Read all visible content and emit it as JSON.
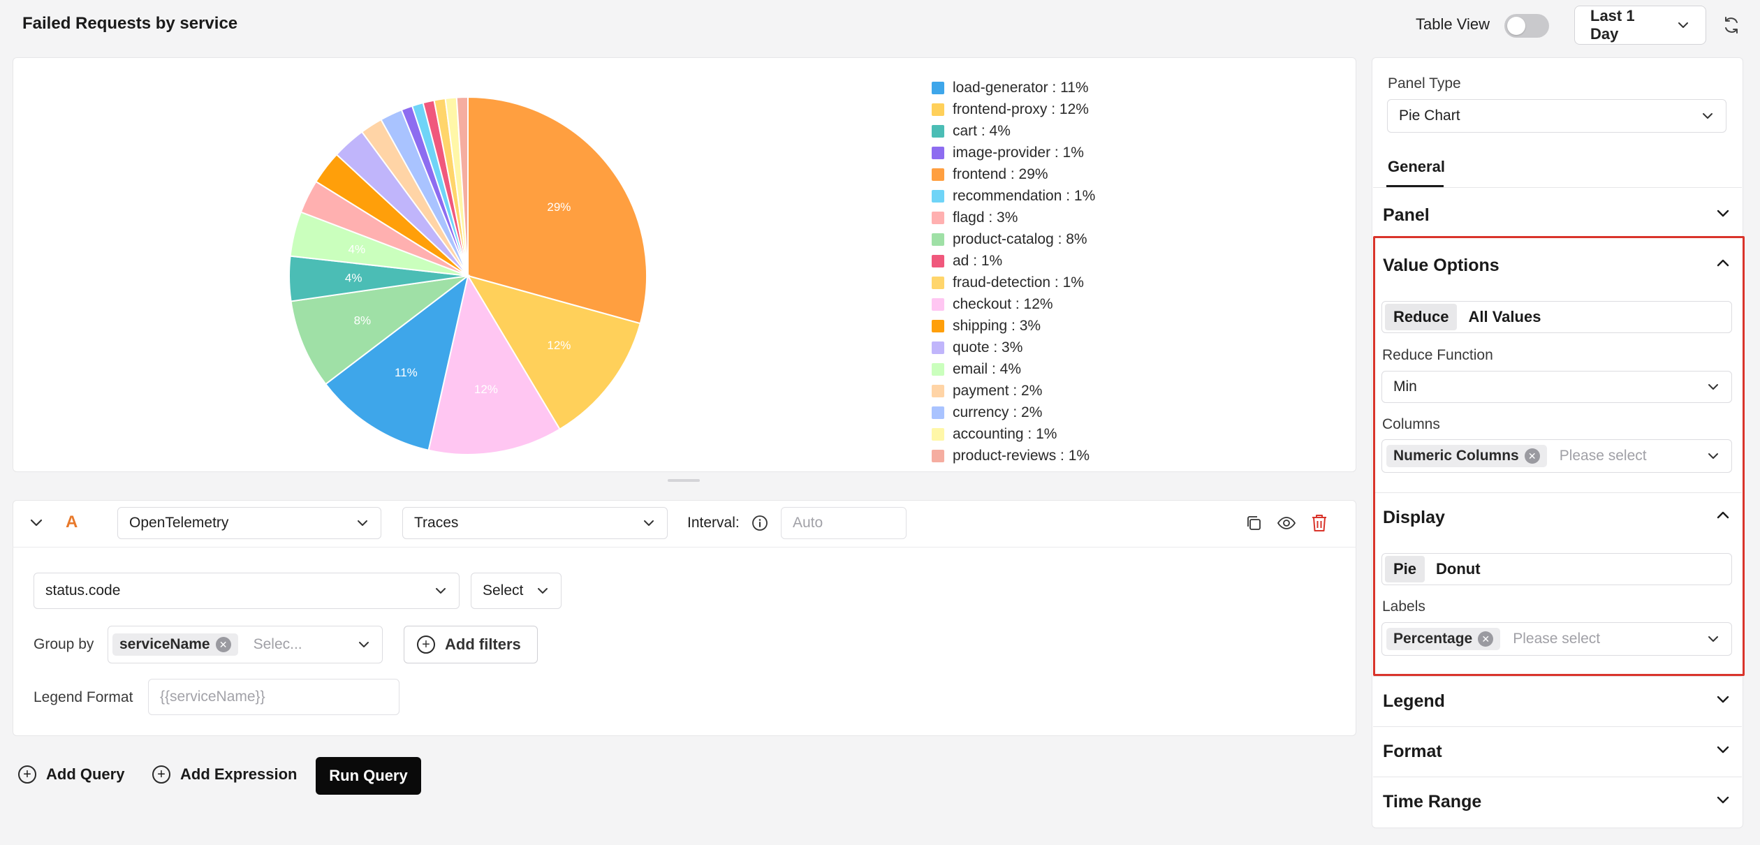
{
  "header": {
    "title": "Failed Requests by service",
    "table_view_label": "Table View",
    "time_range": "Last 1 Day"
  },
  "chart_data": {
    "type": "pie",
    "title": "",
    "slices": [
      {
        "label": "frontend",
        "value": 29,
        "color": "#ff9f40"
      },
      {
        "label": "frontend-proxy",
        "value": 12,
        "color": "#ffd05a"
      },
      {
        "label": "checkout",
        "value": 12,
        "color": "#ffc6f2"
      },
      {
        "label": "load-generator",
        "value": 11,
        "color": "#3ea6ea"
      },
      {
        "label": "product-catalog",
        "value": 8,
        "color": "#9fe0a6"
      },
      {
        "label": "cart",
        "value": 4,
        "color": "#4bbdb5"
      },
      {
        "label": "email",
        "value": 4,
        "color": "#caffbd"
      },
      {
        "label": "flagd",
        "value": 3,
        "color": "#ffb0b0"
      },
      {
        "label": "shipping",
        "value": 3,
        "color": "#ff9f0a"
      },
      {
        "label": "quote",
        "value": 3,
        "color": "#c0b5fb"
      },
      {
        "label": "payment",
        "value": 2,
        "color": "#ffd4a6"
      },
      {
        "label": "currency",
        "value": 2,
        "color": "#a9c3ff"
      },
      {
        "label": "image-provider",
        "value": 1,
        "color": "#8d6cf0"
      },
      {
        "label": "recommendation",
        "value": 1,
        "color": "#6fd4f7"
      },
      {
        "label": "ad",
        "value": 1,
        "color": "#f0587c"
      },
      {
        "label": "fraud-detection",
        "value": 1,
        "color": "#ffd56b"
      },
      {
        "label": "accounting",
        "value": 1,
        "color": "#fff7a8"
      },
      {
        "label": "product-reviews",
        "value": 1,
        "color": "#f5ada0"
      }
    ],
    "slice_labels": [
      "29%",
      "12%",
      "12%",
      "11%",
      "8%",
      "4%",
      "4%"
    ],
    "legend": [
      {
        "text": "load-generator : 11%",
        "color": "#3ea6ea"
      },
      {
        "text": "frontend-proxy : 12%",
        "color": "#ffd05a"
      },
      {
        "text": "cart : 4%",
        "color": "#4bbdb5"
      },
      {
        "text": "image-provider : 1%",
        "color": "#8d6cf0"
      },
      {
        "text": "frontend : 29%",
        "color": "#ff9f40"
      },
      {
        "text": "recommendation : 1%",
        "color": "#6fd4f7"
      },
      {
        "text": "flagd : 3%",
        "color": "#ffb0b0"
      },
      {
        "text": "product-catalog : 8%",
        "color": "#9fe0a6"
      },
      {
        "text": "ad : 1%",
        "color": "#f0587c"
      },
      {
        "text": "fraud-detection : 1%",
        "color": "#ffd56b"
      },
      {
        "text": "checkout : 12%",
        "color": "#ffc6f2"
      },
      {
        "text": "shipping : 3%",
        "color": "#ff9f0a"
      },
      {
        "text": "quote : 3%",
        "color": "#c0b5fb"
      },
      {
        "text": "email : 4%",
        "color": "#caffbd"
      },
      {
        "text": "payment : 2%",
        "color": "#ffd4a6"
      },
      {
        "text": "currency : 2%",
        "color": "#a9c3ff"
      },
      {
        "text": "accounting : 1%",
        "color": "#fff7a8"
      },
      {
        "text": "product-reviews : 1%",
        "color": "#f5ada0"
      }
    ]
  },
  "query": {
    "letter": "A",
    "datasource": "OpenTelemetry",
    "signal": "Traces",
    "interval_label": "Interval:",
    "interval_placeholder": "Auto",
    "metric": "status.code",
    "aggregate": "Select",
    "group_by_label": "Group by",
    "group_by_chip": "serviceName",
    "group_by_placeholder": "Selec...",
    "add_filters": "Add filters",
    "legend_format_label": "Legend Format",
    "legend_format_placeholder": "{{serviceName}}"
  },
  "actions": {
    "add_query": "Add Query",
    "add_expression": "Add Expression",
    "run_query": "Run Query"
  },
  "panel": {
    "panel_type_label": "Panel Type",
    "panel_type_value": "Pie Chart",
    "tab_general": "General",
    "sections": {
      "panel": "Panel",
      "value_options": "Value Options",
      "display": "Display",
      "legend": "Legend",
      "format": "Format",
      "time_range": "Time Range"
    },
    "value_options": {
      "mode_reduce": "Reduce",
      "mode_all": "All Values",
      "reduce_function_label": "Reduce Function",
      "reduce_function_value": "Min",
      "columns_label": "Columns",
      "columns_chip": "Numeric Columns",
      "columns_placeholder": "Please select"
    },
    "display": {
      "mode_pie": "Pie",
      "mode_donut": "Donut",
      "labels_label": "Labels",
      "labels_chip": "Percentage",
      "labels_placeholder": "Please select"
    }
  }
}
